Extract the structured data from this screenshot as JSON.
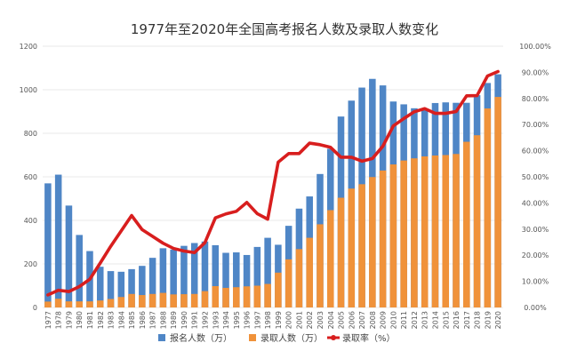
{
  "chart_data": {
    "type": "bar",
    "title": "1977年至2020年全国高考报名人数及录取人数变化",
    "categories": [
      "1977",
      "1978",
      "1979",
      "1980",
      "1981",
      "1982",
      "1983",
      "1984",
      "1985",
      "1986",
      "1987",
      "1988",
      "1989",
      "1990",
      "1991",
      "1992",
      "1993",
      "1994",
      "1995",
      "1996",
      "1997",
      "1998",
      "1999",
      "2000",
      "2001",
      "2002",
      "2003",
      "2004",
      "2005",
      "2006",
      "2007",
      "2008",
      "2009",
      "2010",
      "2011",
      "2012",
      "2013",
      "2014",
      "2015",
      "2016",
      "2017",
      "2018",
      "2019",
      "2020"
    ],
    "y_left": {
      "min": 0,
      "max": 1200,
      "ticks": [
        "0",
        "200",
        "400",
        "600",
        "800",
        "1000",
        "1200"
      ]
    },
    "y_right": {
      "min": 0,
      "max": 100,
      "ticks": [
        "0.00%",
        "10.00%",
        "20.00%",
        "30.00%",
        "40.00%",
        "50.00%",
        "60.00%",
        "70.00%",
        "80.00%",
        "90.00%",
        "100.00%"
      ]
    },
    "series": [
      {
        "name": "报名人数（万）",
        "color": "#4f86c6",
        "kind": "bar",
        "axis": "left",
        "values": [
          570,
          610,
          468,
          333,
          259,
          187,
          167,
          164,
          176,
          191,
          228,
          272,
          266,
          283,
          296,
          303,
          286,
          251,
          253,
          241,
          278,
          320,
          288,
          375,
          454,
          510,
          613,
          729,
          877,
          950,
          1010,
          1050,
          1020,
          946,
          933,
          915,
          912,
          939,
          942,
          940,
          940,
          975,
          1031,
          1071
        ]
      },
      {
        "name": "录取人数（万）",
        "color": "#f0923a",
        "kind": "bar",
        "axis": "left",
        "values": [
          27,
          40,
          28,
          28,
          28,
          32,
          39,
          48,
          62,
          57,
          62,
          67,
          60,
          61,
          62,
          75,
          98,
          90,
          93,
          97,
          100,
          108,
          160,
          221,
          268,
          320,
          382,
          447,
          504,
          546,
          566,
          599,
          629,
          657,
          675,
          685,
          694,
          698,
          700,
          705,
          761,
          791,
          914,
          967
        ]
      },
      {
        "name": "录取率（%）",
        "color": "#d81e1e",
        "kind": "line",
        "axis": "right",
        "values": [
          4.8,
          6.6,
          6.1,
          8.0,
          10.8,
          17.0,
          23.4,
          29.3,
          35.2,
          29.8,
          27.2,
          24.6,
          22.6,
          21.6,
          21.0,
          24.8,
          34.3,
          35.8,
          36.8,
          40.2,
          35.9,
          33.8,
          55.6,
          58.9,
          58.9,
          62.9,
          62.3,
          61.3,
          57.5,
          57.5,
          56.0,
          57.0,
          61.7,
          69.5,
          72.3,
          74.9,
          76.1,
          74.3,
          74.3,
          75.0,
          81.0,
          81.1,
          88.6,
          90.3
        ]
      }
    ],
    "legend": {
      "position": "bottom"
    }
  }
}
